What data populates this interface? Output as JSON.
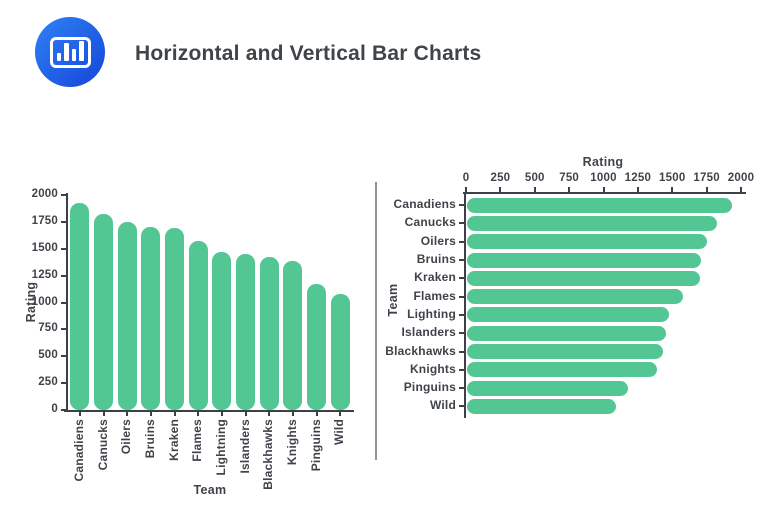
{
  "header": {
    "title": "Horizontal and Vertical Bar Charts",
    "logo_icon": "bar-chart-icon"
  },
  "colors": {
    "bar_green": "#52c794",
    "axis_dark": "#3c4147",
    "divider_gray": "#8f9296",
    "logo_blue_top": "#2f82f4",
    "logo_blue_bottom": "#1545da"
  },
  "chart_data": [
    {
      "type": "bar",
      "orientation": "vertical",
      "categories": [
        "Canadiens",
        "Canucks",
        "Oilers",
        "Bruins",
        "Kraken",
        "Flames",
        "Lightning",
        "Islanders",
        "Blackhawks",
        "Knights",
        "Pinguins",
        "Wild"
      ],
      "values": [
        1925,
        1820,
        1745,
        1700,
        1695,
        1570,
        1472,
        1450,
        1425,
        1385,
        1170,
        1080
      ],
      "xlabel": "Team",
      "ylabel": "Rating",
      "ylim": [
        0,
        2000
      ],
      "yticks": [
        0,
        250,
        500,
        750,
        1000,
        1250,
        1500,
        1750,
        2000
      ],
      "grid": false,
      "legend": false
    },
    {
      "type": "bar",
      "orientation": "horizontal",
      "categories": [
        "Canadiens",
        "Canucks",
        "Oilers",
        "Bruins",
        "Kraken",
        "Flames",
        "Lighting",
        "Islanders",
        "Blackhawks",
        "Knights",
        "Pinguins",
        "Wild"
      ],
      "values": [
        1925,
        1820,
        1745,
        1700,
        1695,
        1570,
        1472,
        1450,
        1425,
        1385,
        1170,
        1080
      ],
      "xlabel": "Rating",
      "ylabel": "Team",
      "xlim": [
        0,
        2000
      ],
      "xticks": [
        0,
        250,
        500,
        750,
        1000,
        1250,
        1500,
        1750,
        2000
      ],
      "x_axis_position": "top",
      "grid": false,
      "legend": false
    }
  ]
}
